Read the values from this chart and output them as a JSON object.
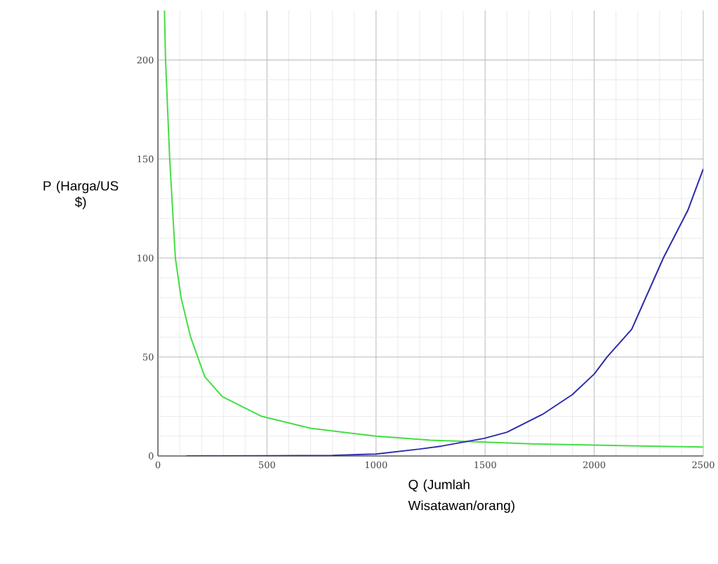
{
  "chart_data": {
    "type": "line",
    "xlabel": "Q (Jumlah Wisatawan/orang)",
    "ylabel": "P (Harga/US $)",
    "xlim": [
      0,
      2500
    ],
    "ylim": [
      0,
      225
    ],
    "xticks": [
      0,
      500,
      1000,
      1500,
      2000,
      2500
    ],
    "yticks": [
      0,
      50,
      100,
      150,
      200
    ],
    "grid": true,
    "marker": "none",
    "line_style": "solid",
    "series": [
      {
        "color": "#44dd44",
        "x": [
          30,
          35,
          54,
          80,
          106,
          150,
          215,
          295,
          476,
          700,
          1000,
          1250,
          1500,
          1750,
          2000,
          2250,
          2500
        ],
        "values": [
          225,
          200,
          150,
          100,
          80,
          60,
          40,
          30,
          20,
          14,
          10,
          8,
          7,
          6,
          5.5,
          5,
          4.5
        ]
      },
      {
        "color": "#2b2bab",
        "x": [
          130,
          500,
          800,
          1000,
          1200,
          1300,
          1496,
          1600,
          1763,
          1900,
          2001,
          2059,
          2172,
          2317,
          2429,
          2500
        ],
        "values": [
          0,
          0.1,
          0.3,
          1,
          3.5,
          5,
          8.9,
          12,
          21,
          31,
          41.5,
          50,
          64,
          100,
          124,
          145
        ]
      }
    ]
  }
}
